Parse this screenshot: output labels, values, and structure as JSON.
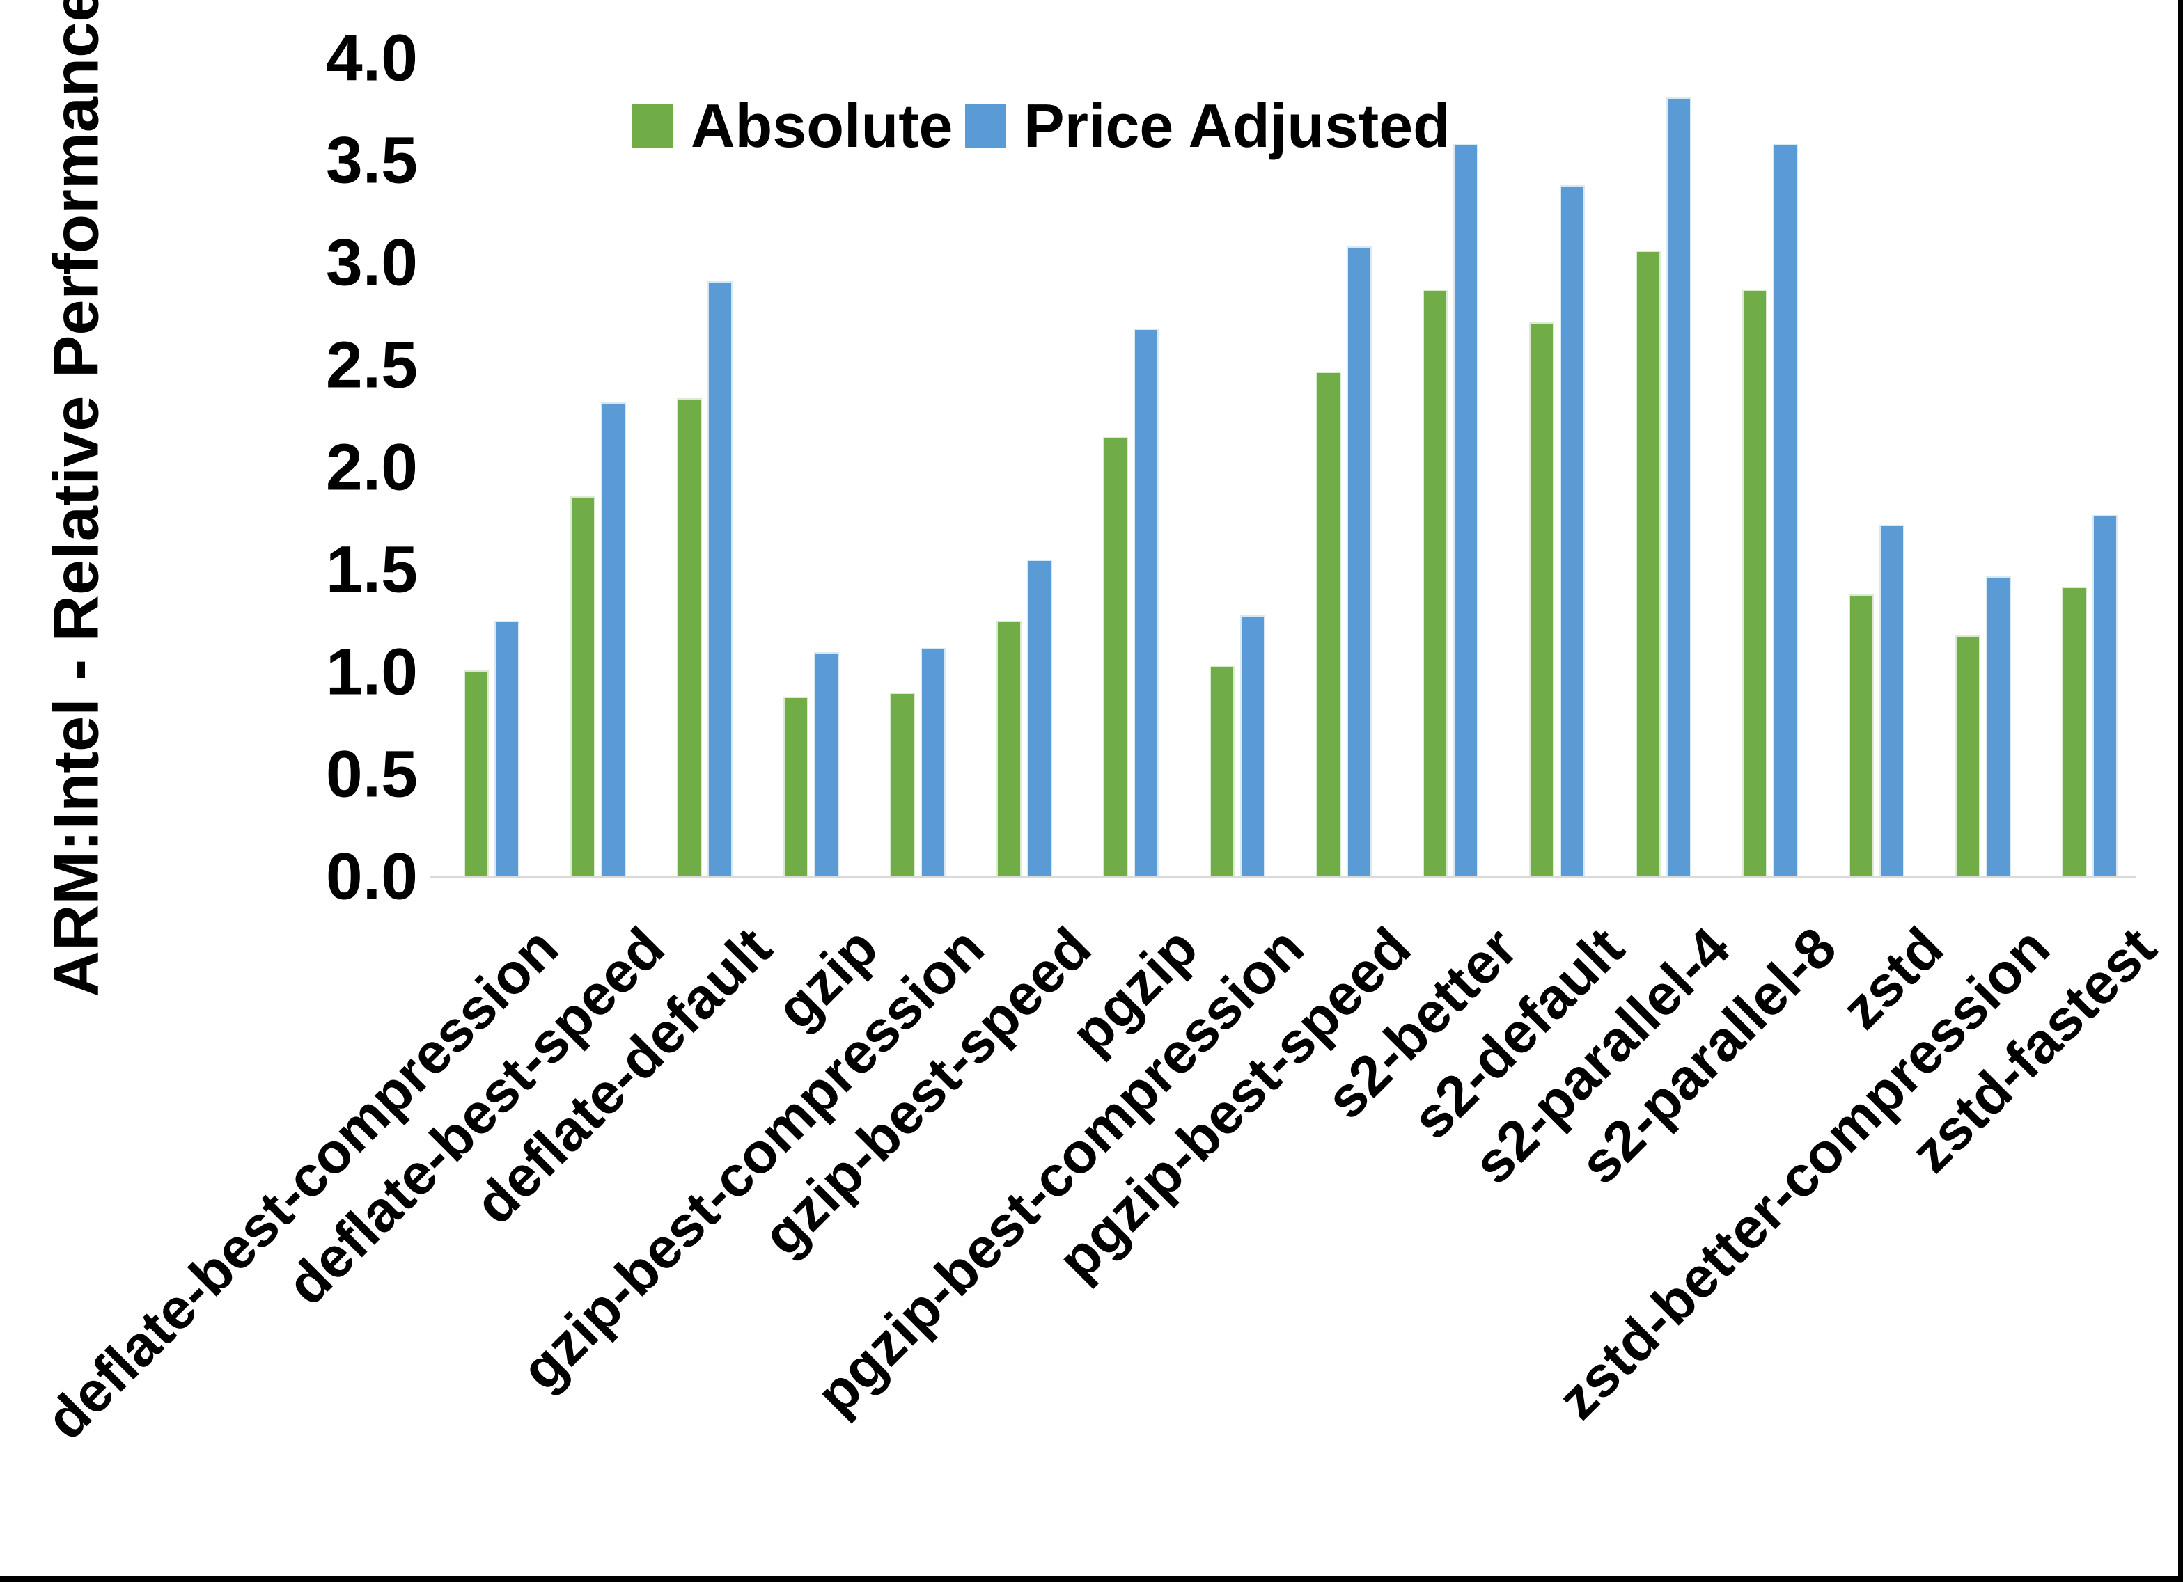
{
  "chart_data": {
    "type": "bar",
    "title": "",
    "ylabel": "ARM:Intel - Relative Performance",
    "xlabel": "",
    "ylim": [
      0.0,
      4.0
    ],
    "ytick_step": 0.5,
    "yticks": [
      "0.0",
      "0.5",
      "1.0",
      "1.5",
      "2.0",
      "2.5",
      "3.0",
      "3.5",
      "4.0"
    ],
    "grid": false,
    "legend_position": "top",
    "categories": [
      "deflate-best-compression",
      "deflate-best-speed",
      "deflate-default",
      "gzip",
      "gzip-best-compression",
      "gzip-best-speed",
      "pgzip",
      "pgzip-best-compression",
      "pgzip-best-speed",
      "s2-better",
      "s2-default",
      "s2-parallel-4",
      "s2-parallel-8",
      "zstd",
      "zstd-better-compression",
      "zstd-fastest"
    ],
    "series": [
      {
        "name": "Absolute",
        "color": "#70AD47",
        "edge_color": "#dcead2",
        "values": [
          1.01,
          1.86,
          2.34,
          0.88,
          0.9,
          1.25,
          2.15,
          1.03,
          2.47,
          2.87,
          2.71,
          3.06,
          2.87,
          1.38,
          1.18,
          1.42
        ]
      },
      {
        "name": "Price Adjusted",
        "color": "#5B9BD5",
        "edge_color": "#d9e8f5",
        "values": [
          1.25,
          2.32,
          2.91,
          1.1,
          1.12,
          1.55,
          2.68,
          1.28,
          3.08,
          3.58,
          3.38,
          3.81,
          3.58,
          1.72,
          1.47,
          1.77
        ]
      }
    ]
  },
  "axis_colors": {
    "baseline": "#d9d9d9",
    "text": "#000000"
  },
  "frame": {
    "edge_color": "#000000"
  }
}
